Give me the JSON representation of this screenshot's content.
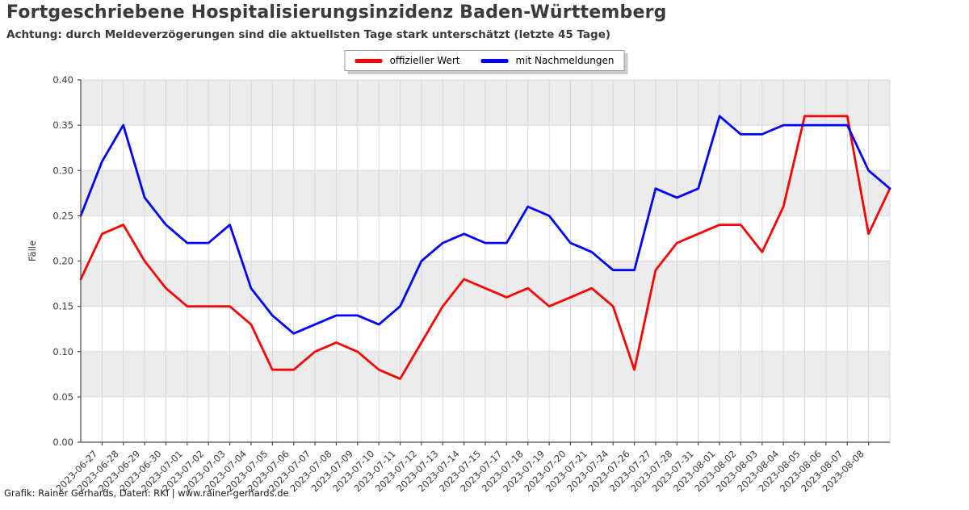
{
  "header": {
    "title": "Fortgeschriebene Hospitalisierungsinzidenz Baden-Württemberg",
    "subtitle": "Achtung: durch Meldeverzögerungen sind die aktuellsten Tage stark unterschätzt (letzte 45 Tage)"
  },
  "footer": {
    "credit": "Grafik: Rainer Gerhards, Daten: RKI | www.rainer-gerhards.de"
  },
  "chart_data": {
    "type": "line",
    "ylabel": "Fälle",
    "xlabel": "",
    "ylim": [
      0,
      0.4
    ],
    "yticks": [
      0.0,
      0.05,
      0.1,
      0.15,
      0.2,
      0.25,
      0.3,
      0.35,
      0.4
    ],
    "grid": true,
    "legend_position": "top-center",
    "x_labels": [
      "",
      "2023-06-27",
      "2023-06-28",
      "2023-06-29",
      "2023-06-30",
      "2023-07-01",
      "2023-07-02",
      "2023-07-03",
      "2023-07-04",
      "2023-07-05",
      "2023-07-06",
      "2023-07-07",
      "2023-07-08",
      "2023-07-09",
      "2023-07-10",
      "2023-07-11",
      "2023-07-12",
      "2023-07-13",
      "2023-07-14",
      "2023-07-15",
      "2023-07-17",
      "2023-07-18",
      "2023-07-19",
      "2023-07-20",
      "2023-07-21",
      "2023-07-24",
      "2023-07-26",
      "2023-07-27",
      "2023-07-28",
      "2023-07-31",
      "2023-08-01",
      "2023-08-02",
      "2023-08-03",
      "2023-08-04",
      "2023-08-05",
      "2023-08-06",
      "2023-08-07",
      "2023-08-08",
      ""
    ],
    "series": [
      {
        "name": "offizieller Wert",
        "color": "#ff0000",
        "values": [
          0.18,
          0.23,
          0.24,
          0.2,
          0.17,
          0.15,
          0.15,
          0.15,
          0.13,
          0.08,
          0.08,
          0.1,
          0.11,
          0.1,
          0.08,
          0.07,
          0.11,
          0.15,
          0.18,
          0.17,
          0.16,
          0.17,
          0.15,
          0.16,
          0.17,
          0.15,
          0.08,
          0.19,
          0.22,
          0.23,
          0.24,
          0.24,
          0.21,
          0.26,
          0.36,
          0.36,
          0.36,
          0.23,
          0.28
        ]
      },
      {
        "name": "mit Nachmeldungen",
        "color": "#0000ff",
        "values": [
          0.25,
          0.31,
          0.35,
          0.27,
          0.24,
          0.22,
          0.22,
          0.24,
          0.17,
          0.14,
          0.12,
          0.13,
          0.14,
          0.14,
          0.13,
          0.15,
          0.2,
          0.22,
          0.23,
          0.22,
          0.22,
          0.26,
          0.25,
          0.22,
          0.21,
          0.19,
          0.19,
          0.28,
          0.27,
          0.28,
          0.36,
          0.34,
          0.34,
          0.35,
          0.35,
          0.35,
          0.35,
          0.3,
          0.28
        ]
      }
    ],
    "style": {
      "band_fill": "#ececec",
      "grid_color": "#d8d8d8",
      "spine_color": "#4a4a4a",
      "tick_text_color": "#3a3a3a"
    }
  }
}
